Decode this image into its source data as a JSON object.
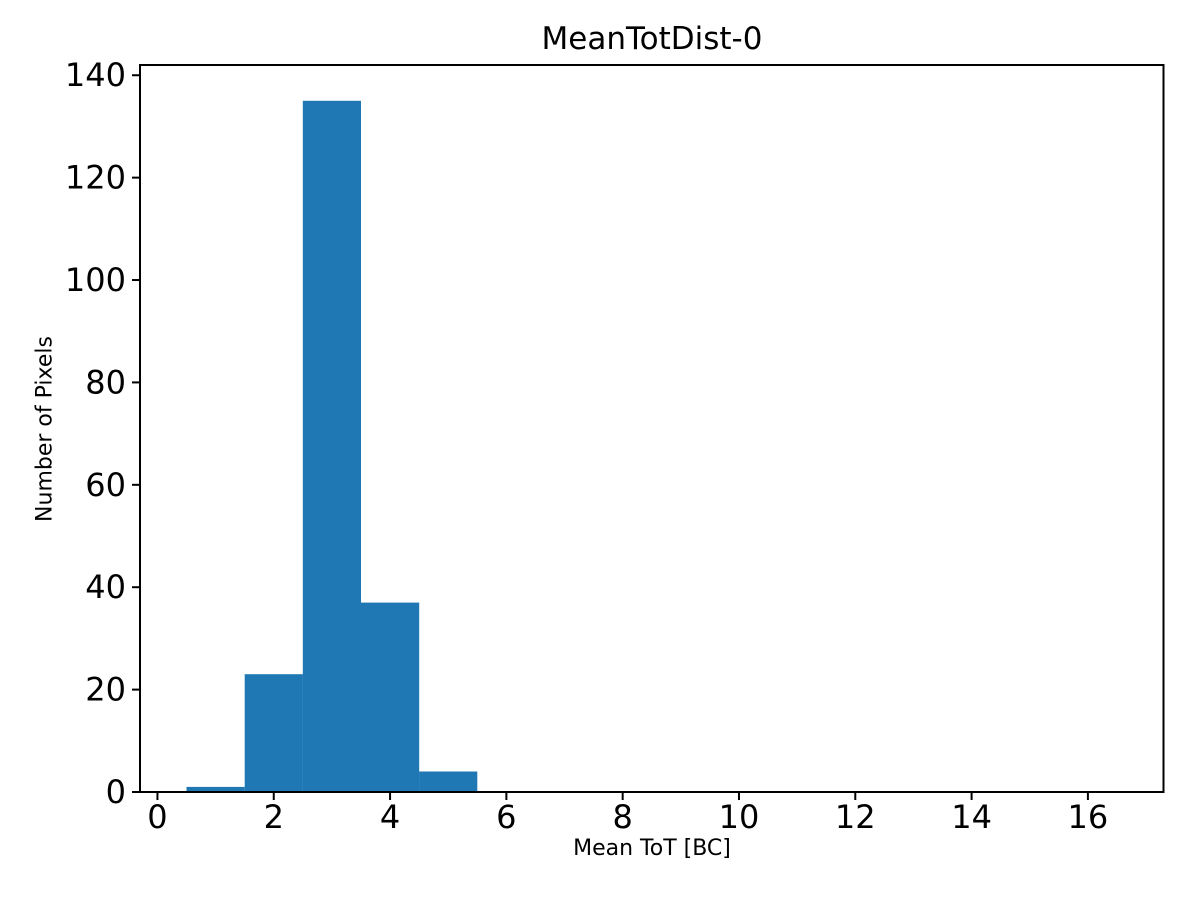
{
  "chart_data": {
    "type": "bar",
    "subtype": "histogram",
    "title": "MeanTotDist-0",
    "xlabel": "Mean ToT [BC]",
    "ylabel": "Number of Pixels",
    "bin_edges": [
      0.5,
      1.5,
      2.5,
      3.5,
      4.5,
      5.5
    ],
    "values": [
      1,
      23,
      135,
      37,
      4
    ],
    "total_count": 200,
    "xlim": [
      -0.3,
      17.3
    ],
    "ylim": [
      0,
      142
    ],
    "x_ticks": [
      0,
      2,
      4,
      6,
      8,
      10,
      12,
      14,
      16
    ],
    "x_tick_labels": [
      "0",
      "2",
      "4",
      "6",
      "8",
      "10",
      "12",
      "14",
      "16"
    ],
    "y_ticks": [
      0,
      20,
      40,
      60,
      80,
      100,
      120,
      140
    ],
    "y_tick_labels": [
      "0",
      "20",
      "40",
      "60",
      "80",
      "100",
      "120",
      "140"
    ],
    "grid": false,
    "legend": null,
    "colors": {
      "bar": "#1f77b4",
      "axis": "#000000",
      "text": "#000000",
      "background": "#ffffff"
    }
  }
}
